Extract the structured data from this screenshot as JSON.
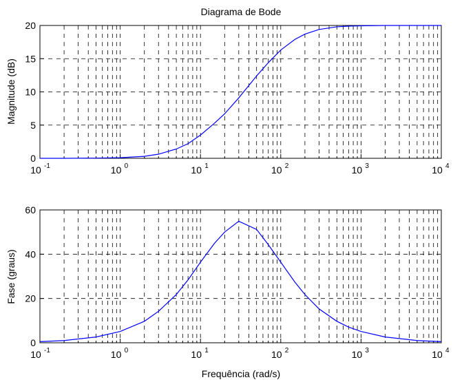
{
  "chart_data": [
    {
      "type": "line",
      "title": "Diagrama de Bode",
      "xlabel": "",
      "ylabel": "Magnitude (dB)",
      "xscale": "log",
      "xlim": [
        0.1,
        10000
      ],
      "ylim": [
        0,
        20
      ],
      "yticks": [
        0,
        5,
        10,
        15,
        20
      ],
      "xticks": [
        {
          "base": "10",
          "exp": "-1"
        },
        {
          "base": "10",
          "exp": "0"
        },
        {
          "base": "10",
          "exp": "1"
        },
        {
          "base": "10",
          "exp": "2"
        },
        {
          "base": "10",
          "exp": "3"
        },
        {
          "base": "10",
          "exp": "4"
        }
      ],
      "grid": true,
      "color": "#0000ff",
      "series": [
        {
          "x": [
            0.1,
            0.2,
            0.5,
            1,
            2,
            3,
            5,
            7,
            10,
            15,
            20,
            30,
            50,
            70,
            100,
            150,
            200,
            300,
            500,
            700,
            1000,
            2000,
            5000,
            10000
          ],
          "y": [
            0.0,
            0.0,
            0.03,
            0.09,
            0.3,
            0.62,
            1.4,
            2.2,
            3.5,
            5.3,
            6.7,
            9.1,
            12.4,
            14.4,
            16.3,
            17.9,
            18.7,
            19.4,
            19.8,
            19.9,
            19.95,
            20.0,
            20.0,
            20.0
          ]
        }
      ]
    },
    {
      "type": "line",
      "title": "",
      "xlabel": "Frequência (rad/s)",
      "ylabel": "Fase (graus)",
      "xscale": "log",
      "xlim": [
        0.1,
        10000
      ],
      "ylim": [
        0,
        60
      ],
      "yticks": [
        0,
        20,
        40,
        60
      ],
      "xticks": [
        {
          "base": "10",
          "exp": "-1"
        },
        {
          "base": "10",
          "exp": "0"
        },
        {
          "base": "10",
          "exp": "1"
        },
        {
          "base": "10",
          "exp": "2"
        },
        {
          "base": "10",
          "exp": "3"
        },
        {
          "base": "10",
          "exp": "4"
        }
      ],
      "grid": true,
      "color": "#0000ff",
      "series": [
        {
          "x": [
            0.1,
            0.2,
            0.5,
            1,
            2,
            3,
            5,
            7,
            10,
            15,
            20,
            30,
            50,
            70,
            100,
            150,
            200,
            300,
            500,
            700,
            1000,
            2000,
            5000,
            10000
          ],
          "y": [
            0.5,
            1.0,
            2.6,
            5.1,
            9.7,
            14.2,
            21.8,
            28.4,
            36.4,
            45.0,
            50.0,
            54.9,
            51.2,
            44.3,
            36.4,
            27.4,
            21.8,
            15.3,
            9.7,
            7.1,
            5.1,
            2.6,
            1.0,
            0.5
          ]
        }
      ]
    }
  ]
}
